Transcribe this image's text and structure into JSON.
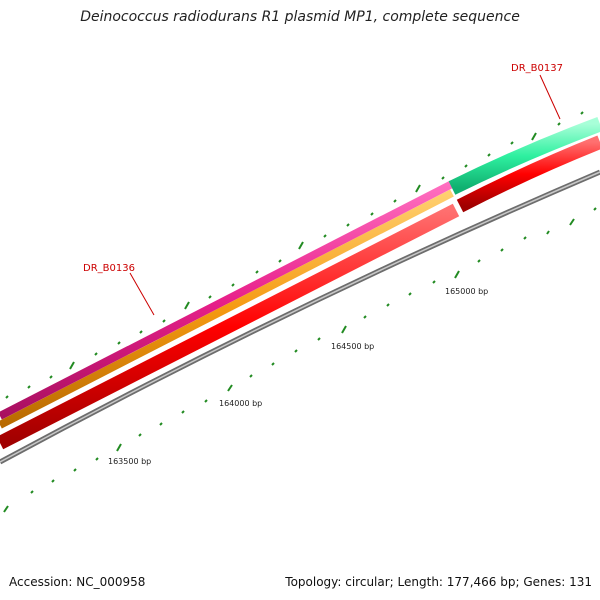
{
  "title": "Deinococcus radiodurans R1 plasmid MP1, complete sequence",
  "footer": {
    "accession": "Accession: NC_000958",
    "summary": "Topology: circular; Length: 177,466 bp; Genes: 131"
  },
  "genes": [
    {
      "name": "DR_B0136"
    },
    {
      "name": "DR_B0137"
    }
  ],
  "position_labels": [
    "163500 bp",
    "164000 bp",
    "164500 bp",
    "165000 bp"
  ],
  "colors": {
    "magenta": "#e8208a",
    "orange": "#f59a12",
    "red": "#ff0000",
    "mint": "#2ef0a0",
    "grey": "#8a8a8a",
    "tick": "#228b22",
    "label": "#cc0000"
  }
}
